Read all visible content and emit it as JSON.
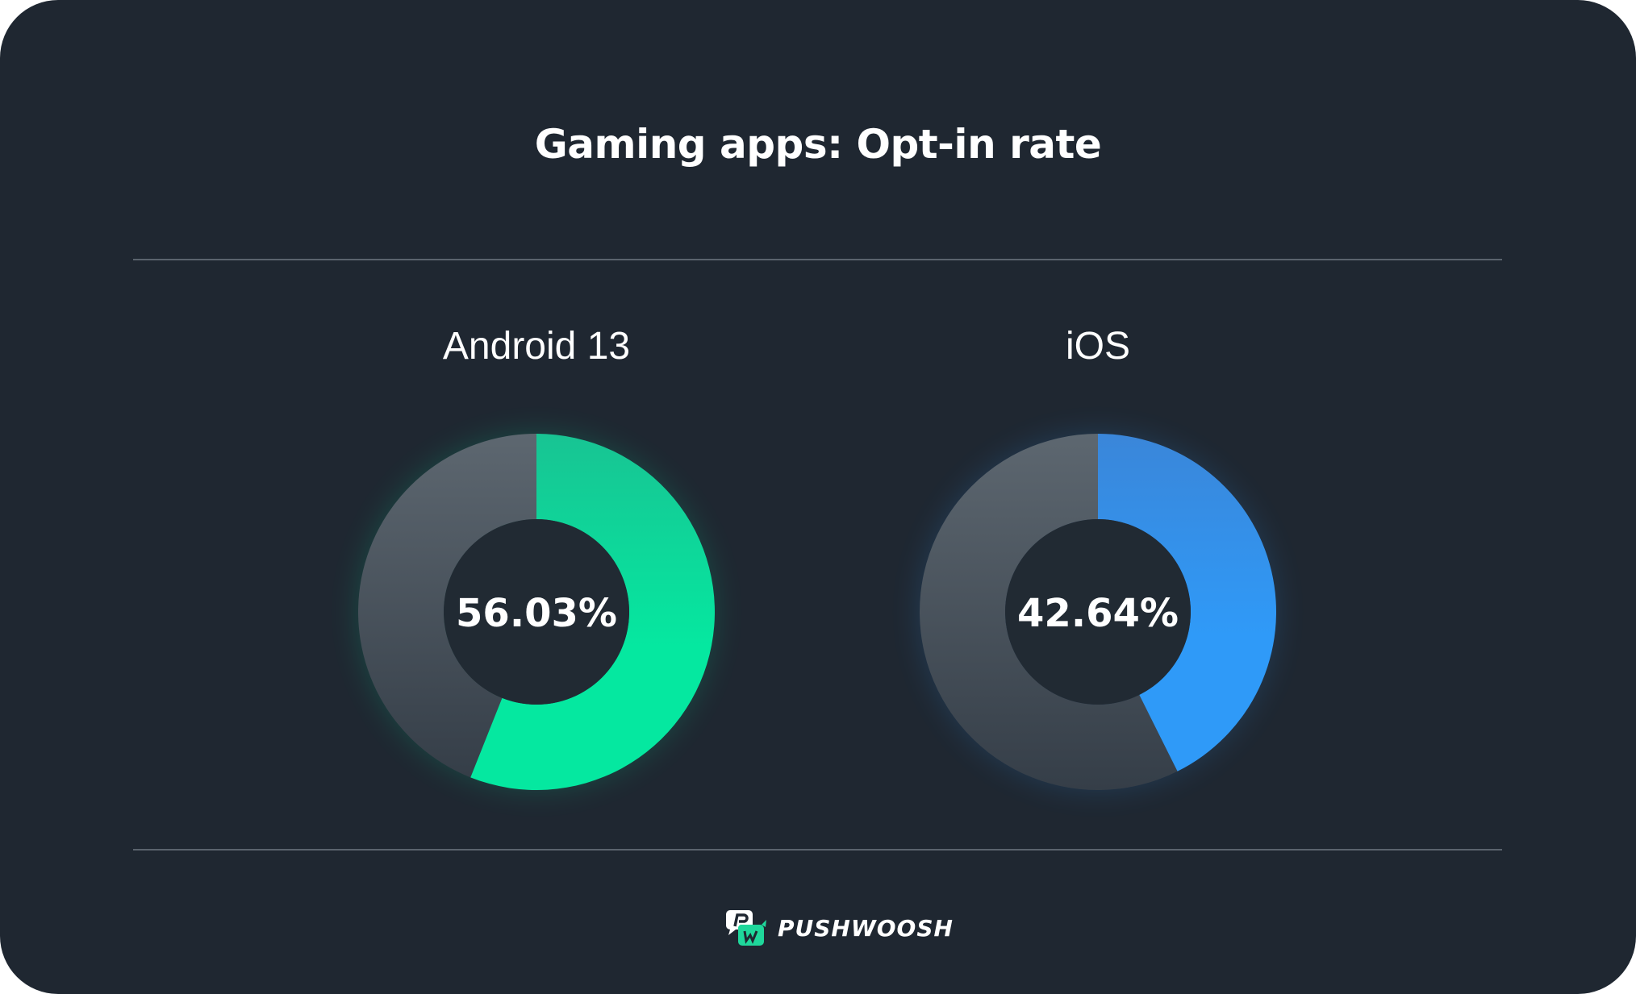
{
  "title": "Gaming apps: Opt-in rate",
  "brand": "PUSHWOOSH",
  "chart_data": [
    {
      "type": "pie",
      "label": "Android 13",
      "value": 56.03,
      "value_label": "56.03%",
      "color": "#05e8a0",
      "rest_color": "#4d5862"
    },
    {
      "type": "pie",
      "label": "iOS",
      "value": 42.64,
      "value_label": "42.64%",
      "color": "#2f98f5",
      "rest_color": "#4d5862"
    }
  ]
}
